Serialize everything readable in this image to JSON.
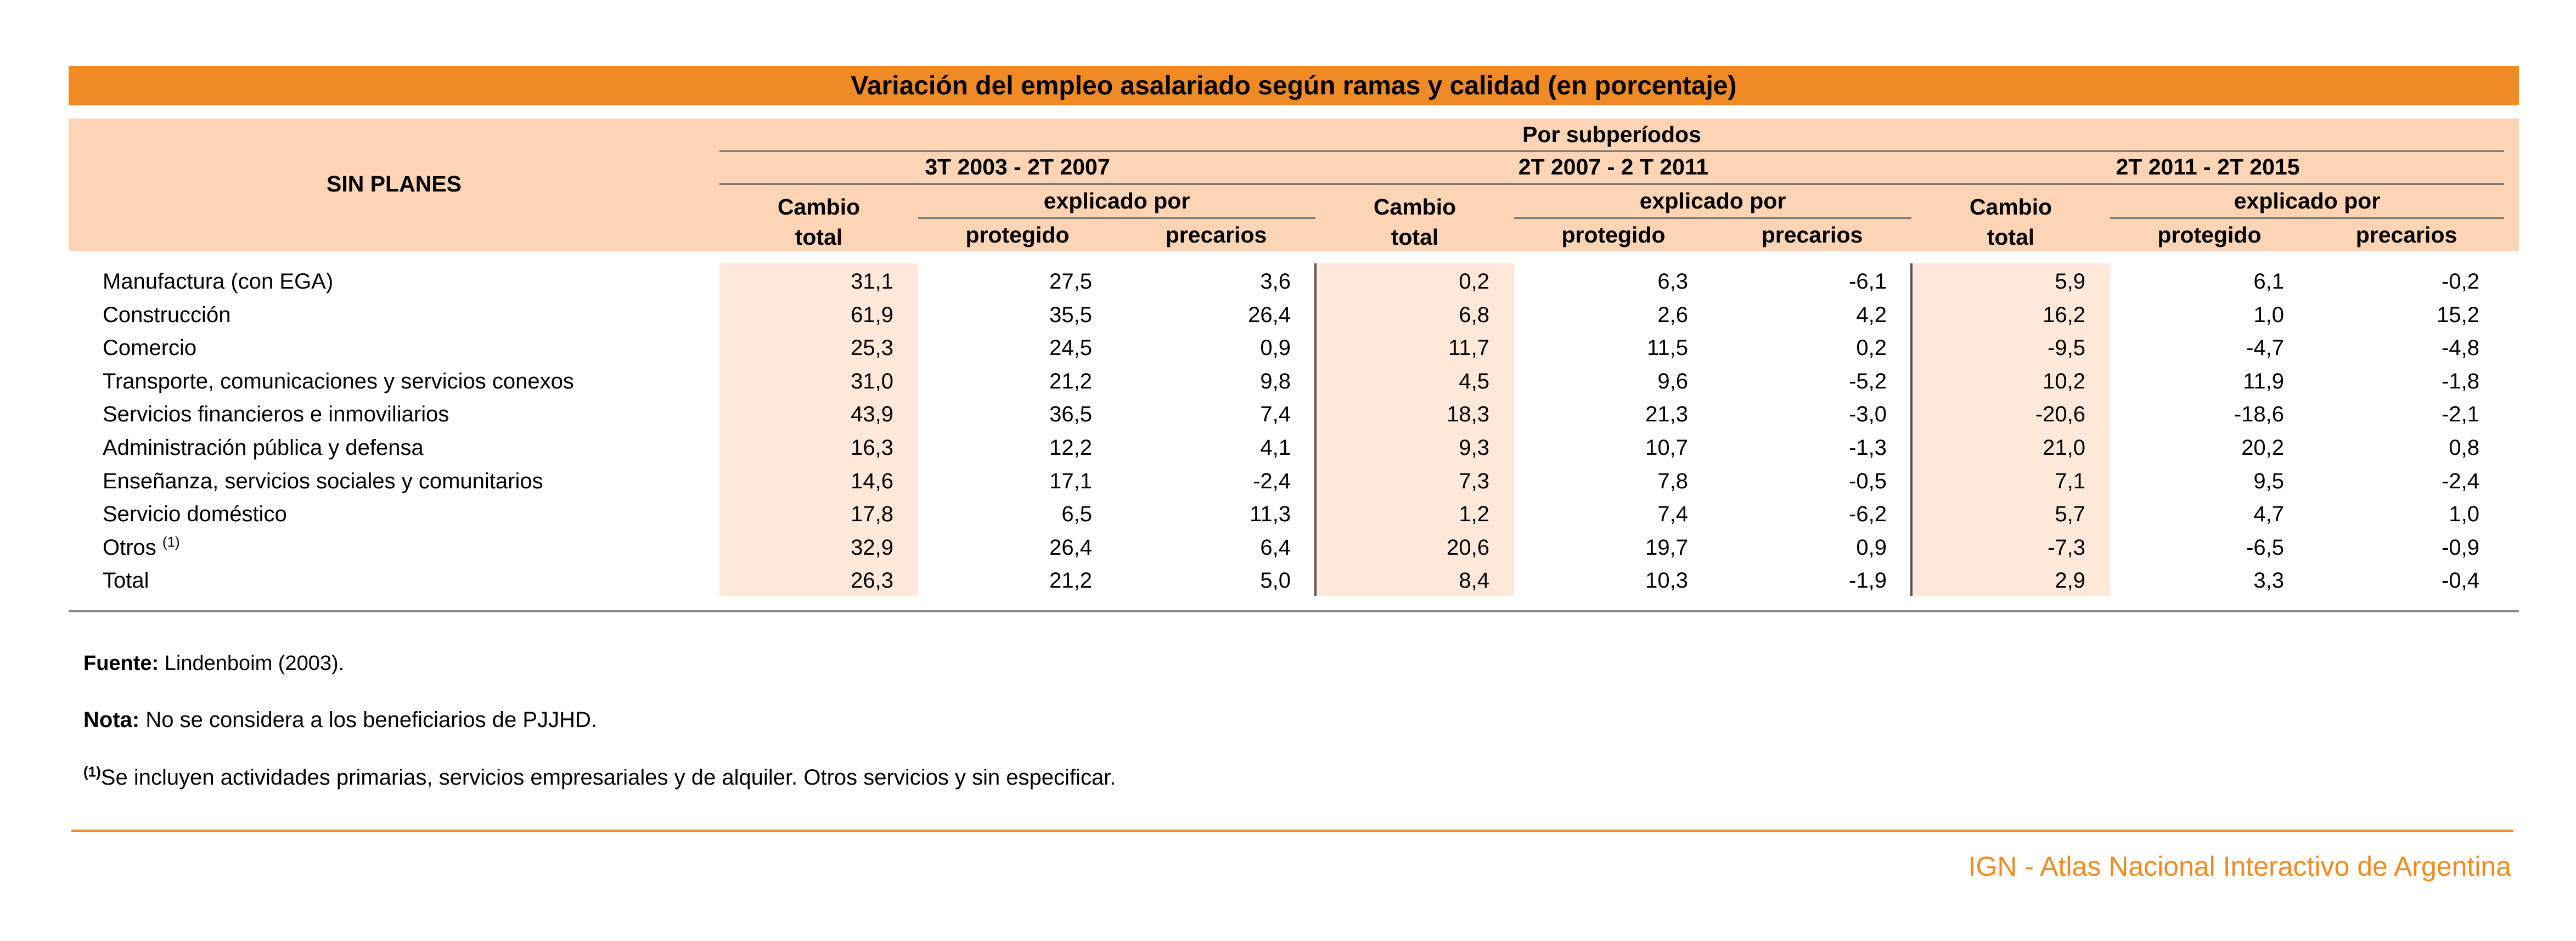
{
  "title": "Variación del empleo asalariado según ramas y calidad (en porcentaje)",
  "header": {
    "row_header": "SIN PLANES",
    "group_header": "Por subperíodos",
    "periods": [
      "3T 2003 - 2T 2007",
      "2T 2007 - 2 T 2011",
      "2T 2011 - 2T 2015"
    ],
    "cambio_line1": "Cambio",
    "cambio_line2": "total",
    "explicado": "explicado por",
    "protegido": "protegido",
    "precarios": "precarios"
  },
  "rows": [
    {
      "label": "Manufactura (con EGA)",
      "sup": "",
      "values": [
        "31,1",
        "27,5",
        "3,6",
        "0,2",
        "6,3",
        "-6,1",
        "5,9",
        "6,1",
        "-0,2"
      ]
    },
    {
      "label": "Construcción",
      "sup": "",
      "values": [
        "61,9",
        "35,5",
        "26,4",
        "6,8",
        "2,6",
        "4,2",
        "16,2",
        "1,0",
        "15,2"
      ]
    },
    {
      "label": "Comercio",
      "sup": "",
      "values": [
        "25,3",
        "24,5",
        "0,9",
        "11,7",
        "11,5",
        "0,2",
        "-9,5",
        "-4,7",
        "-4,8"
      ]
    },
    {
      "label": "Transporte, comunicaciones y servicios conexos",
      "sup": "",
      "values": [
        "31,0",
        "21,2",
        "9,8",
        "4,5",
        "9,6",
        "-5,2",
        "10,2",
        "11,9",
        "-1,8"
      ]
    },
    {
      "label": "Servicios financieros e inmoviliarios",
      "sup": "",
      "values": [
        "43,9",
        "36,5",
        "7,4",
        "18,3",
        "21,3",
        "-3,0",
        "-20,6",
        "-18,6",
        "-2,1"
      ]
    },
    {
      "label": "Administración pública y defensa",
      "sup": "",
      "values": [
        "16,3",
        "12,2",
        "4,1",
        "9,3",
        "10,7",
        "-1,3",
        "21,0",
        "20,2",
        "0,8"
      ]
    },
    {
      "label": "Enseñanza, servicios sociales y comunitarios",
      "sup": "",
      "values": [
        "14,6",
        "17,1",
        "-2,4",
        "7,3",
        "7,8",
        "-0,5",
        "7,1",
        "9,5",
        "-2,4"
      ]
    },
    {
      "label": "Servicio doméstico",
      "sup": "",
      "values": [
        "17,8",
        "6,5",
        "11,3",
        "1,2",
        "7,4",
        "-6,2",
        "5,7",
        "4,7",
        "1,0"
      ]
    },
    {
      "label": "Otros ",
      "sup": "(1)",
      "values": [
        "32,9",
        "26,4",
        "6,4",
        "20,6",
        "19,7",
        "0,9",
        "-7,3",
        "-6,5",
        "-0,9"
      ]
    },
    {
      "label": "Total",
      "sup": "",
      "values": [
        "26,3",
        "21,2",
        "5,0",
        "8,4",
        "10,3",
        "-1,9",
        "2,9",
        "3,3",
        "-0,4"
      ]
    }
  ],
  "notes": {
    "fuente_label": "Fuente:",
    "fuente_text": " Lindenboim (2003).",
    "nota_label": "Nota:",
    "nota_text": " No se considera a los beneficiarios de PJJHD.",
    "footnote_mark": "(1)",
    "footnote_text": "Se incluyen actividades primarias, servicios empresariales y de alquiler. Otros servicios y sin especificar."
  },
  "footer": {
    "brand": "IGN - Atlas Nacional Interactivo de Argentina",
    "brand_color": "#f08a24"
  },
  "colors": {
    "title_bar": "#f08a24",
    "header_bg": "#fdd5b4",
    "total_column_shade": "#fde8da"
  }
}
